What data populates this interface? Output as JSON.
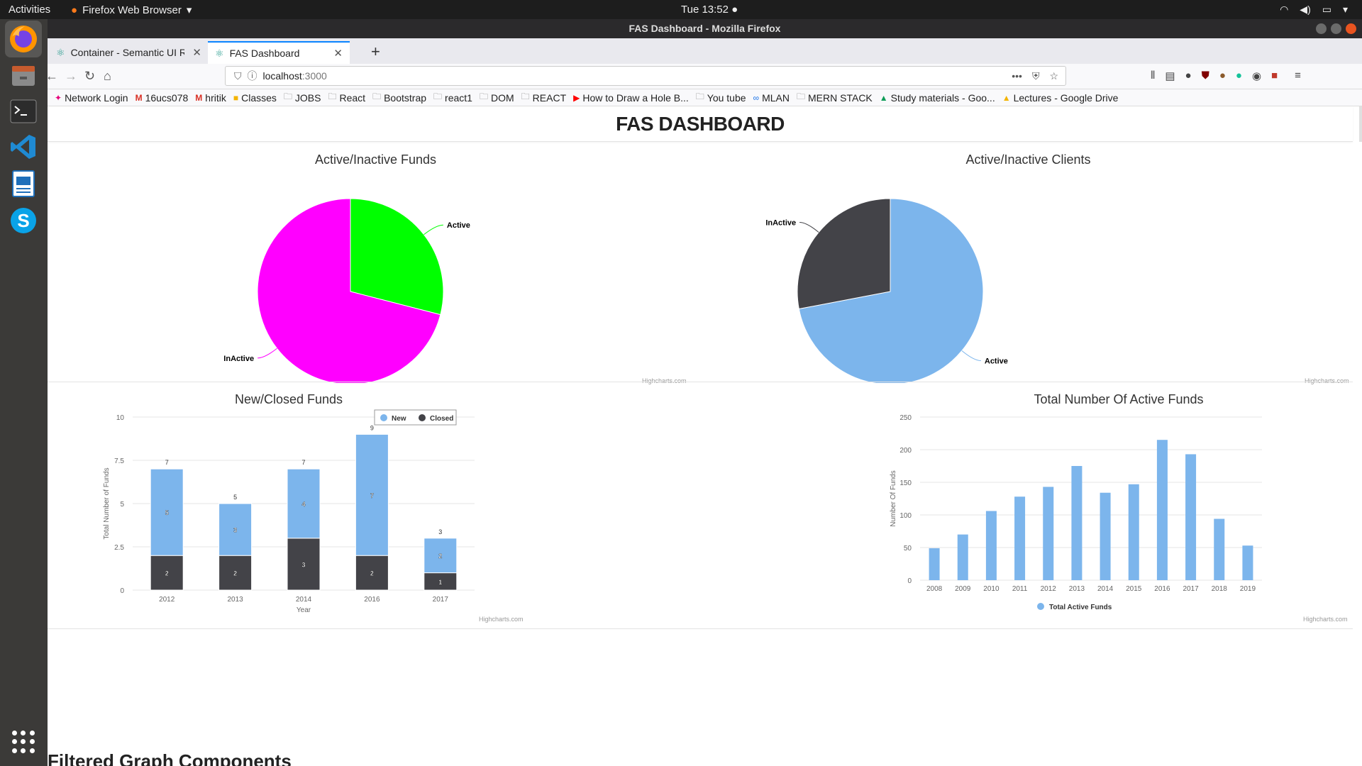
{
  "topbar": {
    "activities": "Activities",
    "app_name": "Firefox Web Browser",
    "clock": "Tue 13:52"
  },
  "window": {
    "title": "FAS Dashboard - Mozilla Firefox"
  },
  "tabs": [
    {
      "label": "Container - Semantic UI R"
    },
    {
      "label": "FAS Dashboard"
    }
  ],
  "url": {
    "host": "localhost",
    "port": ":3000"
  },
  "bookmarks": [
    "Network Login",
    "16ucs078",
    "hritik",
    "Classes",
    "JOBS",
    "React",
    "Bootstrap",
    "react1",
    "DOM",
    "REACT",
    "How to Draw a Hole B...",
    "You tube",
    "MLAN",
    "MERN STACK",
    "Study materials - Goo...",
    "Lectures - Google Drive"
  ],
  "page": {
    "title": "FAS DASHBOARD",
    "filtered_title": "Filtered Graph Components",
    "credits": "Highcharts.com"
  },
  "colors": {
    "magenta": "#ff00ff",
    "green": "#00ff00",
    "blue": "#7cb5ec",
    "dark": "#434348"
  },
  "chart_data": [
    {
      "type": "pie",
      "title": "Active/Inactive Funds",
      "slices": [
        {
          "name": "Active",
          "value": 29,
          "color": "#00ff00"
        },
        {
          "name": "InActive",
          "value": 71,
          "color": "#ff00ff"
        }
      ]
    },
    {
      "type": "pie",
      "title": "Active/Inactive Clients",
      "slices": [
        {
          "name": "Active",
          "value": 72,
          "color": "#7cb5ec"
        },
        {
          "name": "InActive",
          "value": 28,
          "color": "#434348"
        }
      ]
    },
    {
      "type": "bar",
      "stacked": true,
      "title": "New/Closed Funds",
      "xlabel": "Year",
      "ylabel": "Total Number of Funds",
      "categories": [
        "2012",
        "2013",
        "2014",
        "2016",
        "2017"
      ],
      "ylim": [
        0,
        10
      ],
      "yticks": [
        "0",
        "2.5",
        "5",
        "7.5",
        "10"
      ],
      "legend": "top-center",
      "series": [
        {
          "name": "New",
          "values": [
            5,
            3,
            4,
            7,
            2
          ],
          "color": "#7cb5ec"
        },
        {
          "name": "Closed",
          "values": [
            2,
            2,
            3,
            2,
            1
          ],
          "color": "#434348"
        }
      ],
      "totals": [
        7,
        5,
        7,
        9,
        3
      ]
    },
    {
      "type": "bar",
      "title": "Total Number Of Active Funds",
      "ylabel": "Number Of Funds",
      "categories": [
        "2008",
        "2009",
        "2010",
        "2011",
        "2012",
        "2013",
        "2014",
        "2015",
        "2016",
        "2017",
        "2018",
        "2019"
      ],
      "ylim": [
        0,
        250
      ],
      "yticks": [
        "0",
        "50",
        "100",
        "150",
        "200",
        "250"
      ],
      "legend": "bottom-center",
      "series": [
        {
          "name": "Total Active Funds",
          "values": [
            49,
            70,
            106,
            128,
            143,
            175,
            134,
            147,
            215,
            193,
            94,
            53
          ],
          "color": "#7cb5ec"
        }
      ]
    }
  ]
}
